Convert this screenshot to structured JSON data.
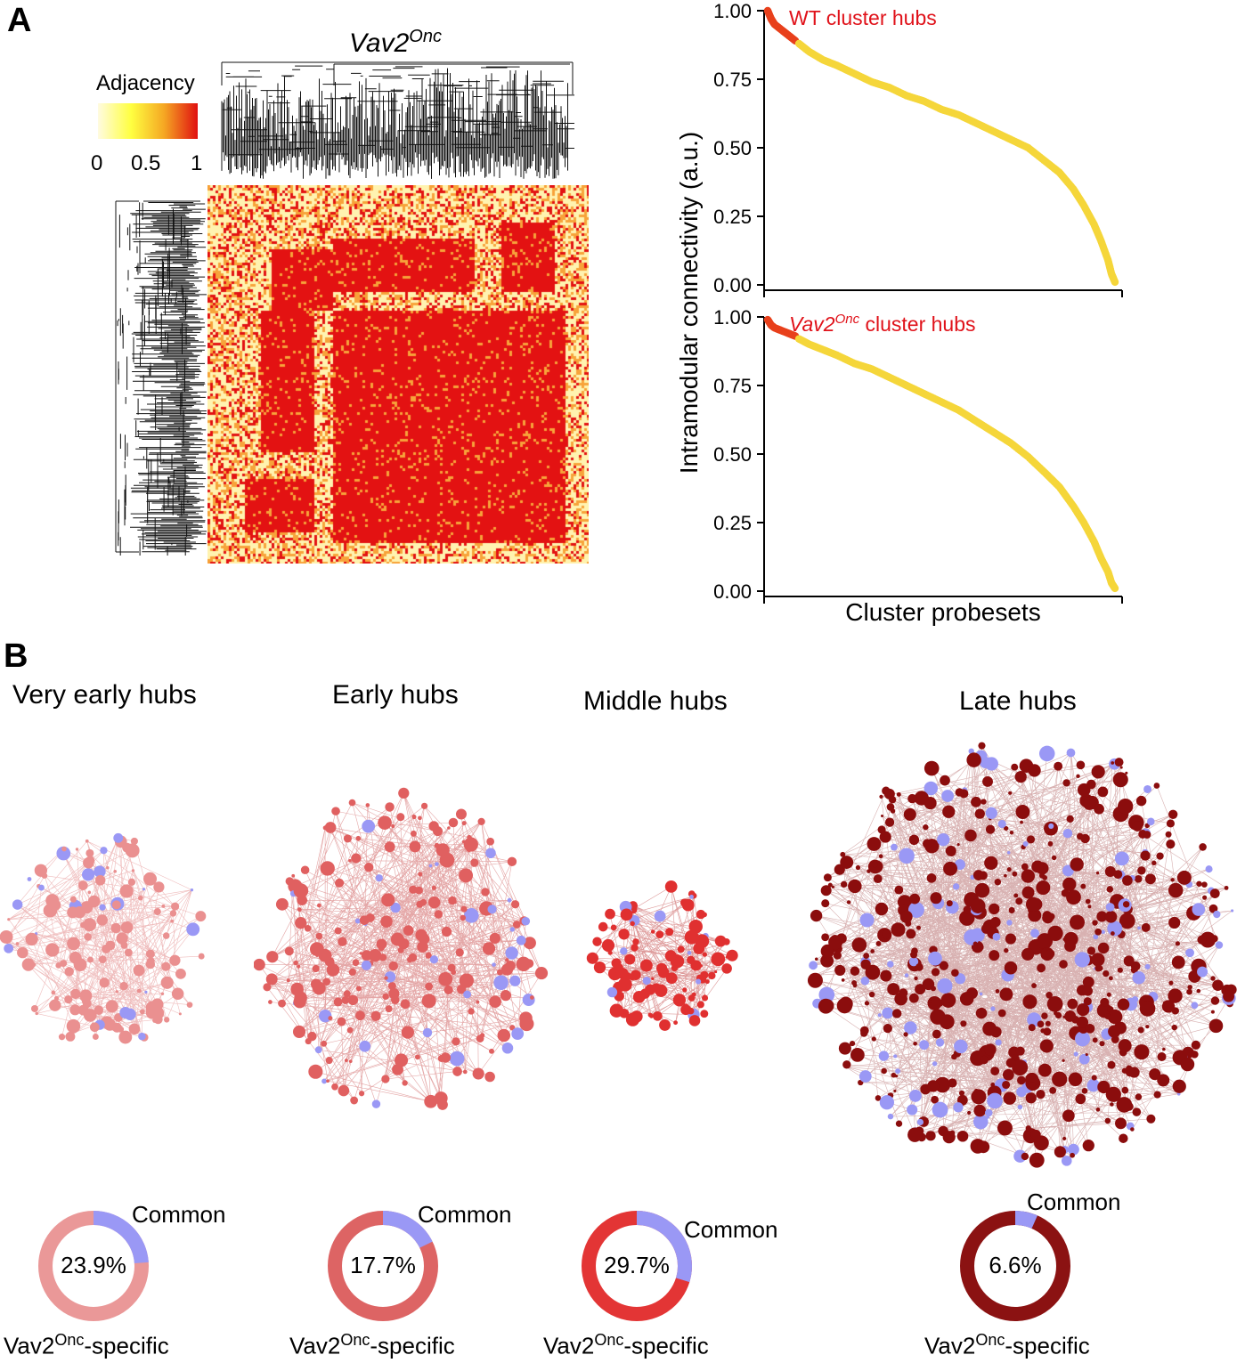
{
  "panel_a": {
    "letter": "A",
    "heatmap_title_main": "Vav2",
    "heatmap_title_sup": "Onc",
    "legend": {
      "title": "Adjacency",
      "ticks": [
        "0",
        "0.5",
        "1"
      ],
      "colors": [
        "#fffbe0",
        "#ffff40",
        "#f5a623",
        "#e01010"
      ]
    },
    "heatmap_colors": {
      "low": "#fff3b0",
      "mid": "#f7a33a",
      "high": "#e31212"
    }
  },
  "panel_b": {
    "letter": "B",
    "networks": [
      {
        "title": "Very early hubs",
        "node_color": "#ea9090",
        "common_color": "#9a98f5",
        "edge_color": "#e8a0a0"
      },
      {
        "title": "Early hubs",
        "node_color": "#e06060",
        "common_color": "#9a98f5",
        "edge_color": "#d88080"
      },
      {
        "title": "Middle hubs",
        "node_color": "#e03030",
        "common_color": "#9a98f5",
        "edge_color": "#d07070"
      },
      {
        "title": "Late hubs",
        "node_color": "#8b0d0d",
        "common_color": "#9a98f5",
        "edge_color": "#c89090"
      }
    ],
    "donuts": [
      {
        "percent_label": "23.9%",
        "common_fraction": 0.239,
        "common_label": "Common",
        "specific_main": "Vav2",
        "specific_sup": "Onc",
        "specific_tail": "-specific",
        "specific_color": "#ea9898"
      },
      {
        "percent_label": "17.7%",
        "common_fraction": 0.177,
        "common_label": "Common",
        "specific_main": "Vav2",
        "specific_sup": "Onc",
        "specific_tail": "-specific",
        "specific_color": "#dd6464"
      },
      {
        "percent_label": "29.7%",
        "common_fraction": 0.297,
        "common_label": "Common",
        "specific_main": "Vav2",
        "specific_sup": "Onc",
        "specific_tail": "-specific",
        "specific_color": "#e33535"
      },
      {
        "percent_label": "6.6%",
        "common_fraction": 0.066,
        "common_label": "Common",
        "specific_main": "Vav2",
        "specific_sup": "Onc",
        "specific_tail": "-specific",
        "specific_color": "#8b1212"
      }
    ]
  },
  "chart_data": [
    {
      "type": "scatter",
      "title": "WT cluster hubs",
      "xlabel": "Cluster probesets",
      "ylabel": "Intramodular connectivity (a.u.)",
      "ylim": [
        0,
        1
      ],
      "yticks": [
        "0.00",
        "0.25",
        "0.50",
        "0.75",
        "1.00"
      ],
      "series": [
        {
          "name": "WT cluster hubs",
          "color": "#e8401c",
          "x": [
            0.0,
            0.01,
            0.02,
            0.04,
            0.06,
            0.08
          ],
          "y": [
            1.0,
            0.97,
            0.95,
            0.93,
            0.91,
            0.89
          ]
        },
        {
          "color": "#f5d63a",
          "x": [
            0.09,
            0.12,
            0.16,
            0.2,
            0.25,
            0.3,
            0.35,
            0.4,
            0.45,
            0.5,
            0.55,
            0.6,
            0.65,
            0.7,
            0.75,
            0.8,
            0.84,
            0.88,
            0.91,
            0.94,
            0.96,
            0.98,
            0.99,
            1.0
          ],
          "y": [
            0.88,
            0.85,
            0.82,
            0.8,
            0.77,
            0.74,
            0.72,
            0.69,
            0.67,
            0.64,
            0.62,
            0.59,
            0.56,
            0.53,
            0.5,
            0.45,
            0.41,
            0.35,
            0.29,
            0.22,
            0.16,
            0.09,
            0.04,
            0.01
          ]
        }
      ]
    },
    {
      "type": "scatter",
      "title_main": "Vav2",
      "title_sup": "Onc",
      "title_tail": " cluster hubs",
      "xlabel": "Cluster probesets",
      "ylabel": "Intramodular connectivity (a.u.)",
      "ylim": [
        0,
        1
      ],
      "yticks": [
        "0.00",
        "0.25",
        "0.50",
        "0.75",
        "1.00"
      ],
      "series": [
        {
          "name": "Vav2Onc cluster hubs",
          "color": "#e8401c",
          "x": [
            0.0,
            0.01,
            0.02,
            0.04,
            0.06,
            0.08
          ],
          "y": [
            0.99,
            0.97,
            0.96,
            0.95,
            0.94,
            0.93
          ]
        },
        {
          "color": "#f5d63a",
          "x": [
            0.09,
            0.12,
            0.16,
            0.2,
            0.25,
            0.3,
            0.35,
            0.4,
            0.45,
            0.5,
            0.55,
            0.6,
            0.65,
            0.7,
            0.75,
            0.8,
            0.84,
            0.88,
            0.91,
            0.94,
            0.96,
            0.98,
            0.99,
            1.0
          ],
          "y": [
            0.92,
            0.9,
            0.88,
            0.86,
            0.83,
            0.81,
            0.78,
            0.75,
            0.72,
            0.69,
            0.66,
            0.62,
            0.58,
            0.54,
            0.49,
            0.43,
            0.38,
            0.31,
            0.25,
            0.18,
            0.12,
            0.07,
            0.03,
            0.01
          ]
        }
      ]
    }
  ]
}
